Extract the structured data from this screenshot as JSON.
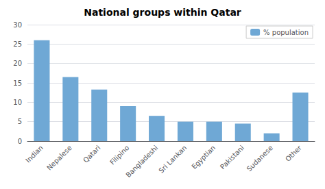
{
  "chart_data": {
    "type": "bar",
    "title": "National groups within Qatar",
    "categories": [
      "Indian",
      "Nepalese",
      "Qatari",
      "Filipino",
      "Bangladeshi",
      "Sri Lankan",
      "Egyptian",
      "Pakistani",
      "Sudanese",
      "Other"
    ],
    "series": [
      {
        "name": "% population",
        "color": "#6fa8d5",
        "values": [
          26,
          16.5,
          13.3,
          9.0,
          6.5,
          5.0,
          5.0,
          4.5,
          2.0,
          12.5
        ]
      }
    ],
    "ylim": [
      0,
      30
    ],
    "yticks": [
      0,
      5,
      10,
      15,
      20,
      25,
      30
    ],
    "grid": true,
    "legend": "upper right"
  }
}
